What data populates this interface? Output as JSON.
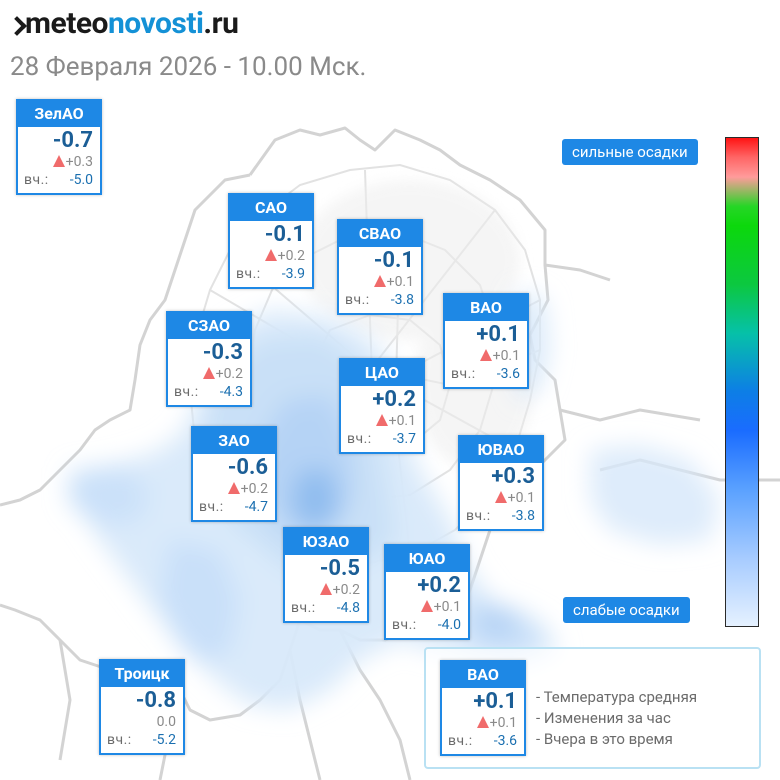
{
  "header": {
    "logo_part1": "meteo",
    "logo_part2": "novosti",
    "logo_part3": ".ru",
    "date_line": "28 Февраля 2026 - 10.00 Мск."
  },
  "yesterday_label": "вч.:",
  "districts": [
    {
      "name": "ЗелАО",
      "temp": "-0.7",
      "change": "+0.3",
      "yesterday": "-5.0"
    },
    {
      "name": "САО",
      "temp": "-0.1",
      "change": "+0.2",
      "yesterday": "-3.9"
    },
    {
      "name": "СВАО",
      "temp": "-0.1",
      "change": "+0.1",
      "yesterday": "-3.8"
    },
    {
      "name": "ВАО",
      "temp": "+0.1",
      "change": "+0.1",
      "yesterday": "-3.6"
    },
    {
      "name": "СЗАО",
      "temp": "-0.3",
      "change": "+0.2",
      "yesterday": "-4.3"
    },
    {
      "name": "ЦАО",
      "temp": "+0.2",
      "change": "+0.1",
      "yesterday": "-3.7"
    },
    {
      "name": "ЗАО",
      "temp": "-0.6",
      "change": "+0.2",
      "yesterday": "-4.7"
    },
    {
      "name": "ЮВАО",
      "temp": "+0.3",
      "change": "+0.1",
      "yesterday": "-3.8"
    },
    {
      "name": "ЮЗАО",
      "temp": "-0.5",
      "change": "+0.2",
      "yesterday": "-4.8"
    },
    {
      "name": "ЮАО",
      "temp": "+0.2",
      "change": "+0.1",
      "yesterday": "-4.0"
    },
    {
      "name": "Троицк",
      "temp": "-0.8",
      "change": "0.0",
      "yesterday": "-5.2"
    }
  ],
  "precip_scale": {
    "high_label": "сильные осадки",
    "low_label": "слабые осадки"
  },
  "legend": {
    "sample": {
      "name": "ВАО",
      "temp": "+0.1",
      "change": "+0.1",
      "yesterday": "-3.6"
    },
    "lines": [
      "- Температура средняя",
      "- Изменения за час",
      "- Вчера в это время"
    ]
  }
}
